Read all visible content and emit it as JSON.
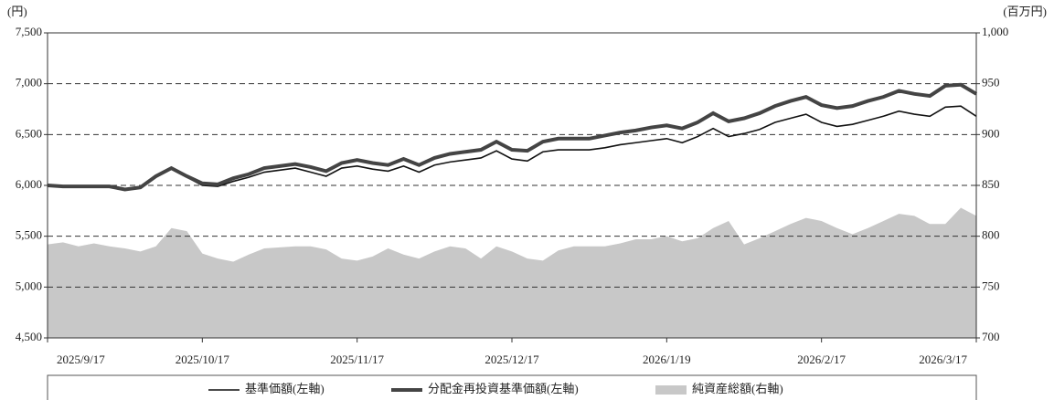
{
  "chart_data": {
    "type": "line",
    "y_unit_label": "(円)",
    "y2_unit_label": "(百万円)",
    "categories": [
      "2025/9/17",
      null,
      null,
      null,
      null,
      null,
      null,
      null,
      null,
      null,
      "2025/10/17",
      null,
      null,
      null,
      null,
      null,
      null,
      null,
      null,
      null,
      "2025/11/17",
      null,
      null,
      null,
      null,
      null,
      null,
      null,
      null,
      null,
      "2025/12/17",
      null,
      null,
      null,
      null,
      null,
      null,
      null,
      null,
      null,
      "2026/1/19",
      null,
      null,
      null,
      null,
      null,
      null,
      null,
      null,
      null,
      "2026/2/17",
      null,
      null,
      null,
      null,
      null,
      null,
      null,
      null,
      null,
      "2026/3/17"
    ],
    "ylim": [
      4500,
      7500
    ],
    "yticks": [
      {
        "value": 4500,
        "label": "4,500"
      },
      {
        "value": 5000,
        "label": "5,000"
      },
      {
        "value": 5500,
        "label": "5,500"
      },
      {
        "value": 6000,
        "label": "6,000"
      },
      {
        "value": 6500,
        "label": "6,500"
      },
      {
        "value": 7000,
        "label": "7,000"
      },
      {
        "value": 7500,
        "label": "7,500"
      }
    ],
    "y2lim": [
      700,
      1000
    ],
    "y2ticks": [
      700,
      750,
      800,
      850,
      900,
      950,
      {
        "value": 1000,
        "label": "1,000"
      }
    ],
    "grid": true,
    "series": [
      {
        "name": "基準価額(左軸)",
        "color": "#111111",
        "type": "line",
        "values": [
          6000,
          5990,
          5990,
          5990,
          5990,
          5960,
          5980,
          6080,
          6160,
          6080,
          6000,
          5990,
          6040,
          6080,
          6130,
          6150,
          6170,
          6130,
          6090,
          6170,
          6190,
          6160,
          6140,
          6190,
          6130,
          6200,
          6230,
          6250,
          6270,
          6340,
          6260,
          6240,
          6330,
          6350,
          6350,
          6350,
          6370,
          6400,
          6420,
          6440,
          6460,
          6420,
          6480,
          6560,
          6480,
          6510,
          6550,
          6620,
          6660,
          6700,
          6620,
          6580,
          6600,
          6640,
          6680,
          6730,
          6700,
          6680,
          6770,
          6780,
          6680
        ]
      },
      {
        "name": "分配金再投資基準価額(左軸)",
        "color": "#444444",
        "type": "line",
        "values": [
          6000,
          5990,
          5990,
          5990,
          5990,
          5960,
          5980,
          6090,
          6170,
          6090,
          6020,
          6010,
          6070,
          6110,
          6170,
          6190,
          6210,
          6180,
          6140,
          6220,
          6250,
          6220,
          6200,
          6260,
          6200,
          6270,
          6310,
          6330,
          6350,
          6430,
          6350,
          6340,
          6430,
          6460,
          6460,
          6460,
          6490,
          6520,
          6540,
          6570,
          6590,
          6560,
          6620,
          6710,
          6630,
          6660,
          6710,
          6780,
          6830,
          6870,
          6790,
          6760,
          6780,
          6830,
          6870,
          6930,
          6900,
          6880,
          6980,
          6990,
          6900
        ]
      },
      {
        "name": "純資産総額(右軸)",
        "color": "#c8c8c8",
        "type": "area",
        "axis": "y2",
        "values": [
          792,
          794,
          790,
          793,
          790,
          788,
          785,
          790,
          808,
          805,
          783,
          778,
          775,
          782,
          788,
          789,
          790,
          790,
          787,
          778,
          776,
          780,
          788,
          782,
          778,
          785,
          790,
          788,
          778,
          790,
          785,
          778,
          776,
          786,
          790,
          790,
          790,
          793,
          797,
          797,
          800,
          795,
          798,
          808,
          815,
          792,
          798,
          805,
          812,
          818,
          815,
          808,
          802,
          808,
          815,
          822,
          820,
          812,
          812,
          828,
          820
        ]
      }
    ]
  }
}
